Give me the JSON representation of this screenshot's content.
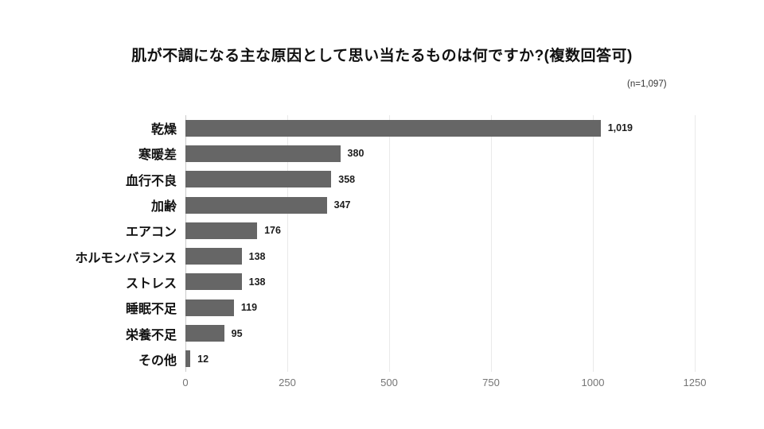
{
  "header": {
    "title": "肌が不調になる主な原因として思い当たるものは何ですか?(複数回答可)",
    "sample_size": "(n=1,097)"
  },
  "colors": {
    "title": "#111111",
    "bar": "#666666",
    "axis_line": "#c9c9c9",
    "gridline": "#e9e9e9",
    "tick_label": "#757575",
    "category_label": "#111111",
    "value_label": "#1c1c1c"
  },
  "chart_data": {
    "type": "bar",
    "orientation": "horizontal",
    "title": "肌が不調になる主な原因として思い当たるものは何ですか?(複数回答可)",
    "subtitle": "(n=1,097)",
    "categories": [
      "乾燥",
      "寒暖差",
      "血行不良",
      "加齢",
      "エアコン",
      "ホルモンバランス",
      "ストレス",
      "睡眠不足",
      "栄養不足",
      "その他"
    ],
    "values": [
      1019,
      380,
      358,
      347,
      176,
      138,
      138,
      119,
      95,
      12
    ],
    "value_labels": [
      "1,019",
      "380",
      "358",
      "347",
      "176",
      "138",
      "138",
      "119",
      "95",
      "12"
    ],
    "xlabel": "",
    "ylabel": "",
    "xlim": [
      0,
      1250
    ],
    "xticks": [
      0,
      250,
      500,
      750,
      1000,
      1250
    ],
    "xtick_labels": [
      "0",
      "250",
      "500",
      "750",
      "1000",
      "1250"
    ],
    "grid": true,
    "legend": false
  }
}
